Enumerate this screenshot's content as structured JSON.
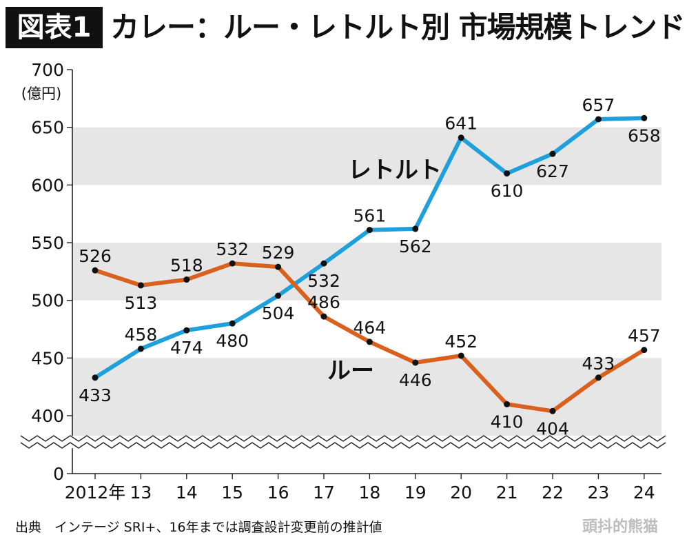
{
  "header": {
    "badge": "図表1",
    "title": "カレー：ルー・レトルト別 市場規模トレンド"
  },
  "chart_data": {
    "type": "line",
    "x": [
      "2012年",
      "13",
      "14",
      "15",
      "16",
      "17",
      "18",
      "19",
      "20",
      "21",
      "22",
      "23",
      "24"
    ],
    "ylabel": "(億円)",
    "yticks": [
      0,
      400,
      450,
      500,
      550,
      600,
      650,
      700
    ],
    "ylim": [
      400,
      700
    ],
    "axis_break": true,
    "grid": "alternating horizontal bands",
    "series": [
      {
        "name": "レトルト",
        "color": "#1ea0dc",
        "values": [
          433,
          458,
          474,
          480,
          504,
          532,
          561,
          562,
          641,
          610,
          627,
          657,
          658
        ],
        "label_pos": [
          "below",
          "above",
          "below",
          "below",
          "below",
          "below",
          "above",
          "below",
          "above",
          "below",
          "below",
          "above",
          "below"
        ]
      },
      {
        "name": "ルー",
        "color": "#d9611d",
        "values": [
          526,
          513,
          518,
          532,
          529,
          486,
          464,
          446,
          452,
          410,
          404,
          433,
          457
        ],
        "label_pos": [
          "above",
          "below",
          "above",
          "above",
          "above",
          "above",
          "above",
          "below",
          "above",
          "below",
          "below",
          "above",
          "above"
        ]
      }
    ]
  },
  "footer": {
    "source": "出典　インテージ SRI+、16年までは調査設計変更前の推計値",
    "watermark": "頭抖的熊猫"
  }
}
